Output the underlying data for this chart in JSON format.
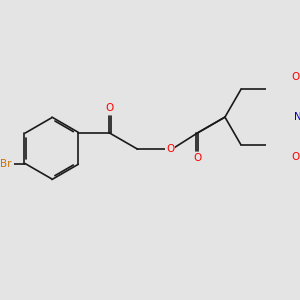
{
  "background_color": "#e4e4e4",
  "bond_color": "#1a1a1a",
  "atom_colors": {
    "O": "#ff0000",
    "N": "#0000cc",
    "Br": "#cc7000",
    "C": "#1a1a1a"
  },
  "figsize": [
    3.0,
    3.0
  ],
  "dpi": 100
}
